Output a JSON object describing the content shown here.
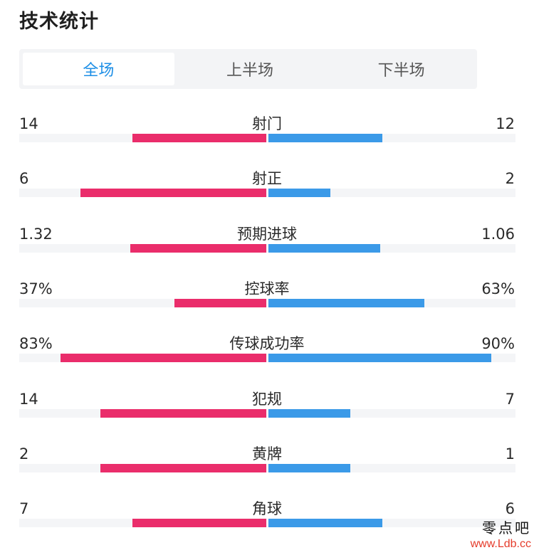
{
  "title": "技术统计",
  "tabs": [
    {
      "label": "全场",
      "active": true
    },
    {
      "label": "上半场",
      "active": false
    },
    {
      "label": "下半场",
      "active": false
    }
  ],
  "colors": {
    "home": "#ea2d6b",
    "away": "#3b9ae8",
    "active_tab": "#1e8fe6"
  },
  "stats": [
    {
      "label": "射门",
      "left": "14",
      "right": "12",
      "left_share": 0.54,
      "right_share": 0.46
    },
    {
      "label": "射正",
      "left": "6",
      "right": "2",
      "left_share": 0.75,
      "right_share": 0.25
    },
    {
      "label": "预期进球",
      "left": "1.32",
      "right": "1.06",
      "left_share": 0.55,
      "right_share": 0.45
    },
    {
      "label": "控球率",
      "left": "37%",
      "right": "63%",
      "left_share": 0.37,
      "right_share": 0.63
    },
    {
      "label": "传球成功率",
      "left": "83%",
      "right": "90%",
      "left_share": 0.83,
      "right_share": 0.9
    },
    {
      "label": "犯规",
      "left": "14",
      "right": "7",
      "left_share": 0.67,
      "right_share": 0.33
    },
    {
      "label": "黄牌",
      "left": "2",
      "right": "1",
      "left_share": 0.67,
      "right_share": 0.33
    },
    {
      "label": "角球",
      "left": "7",
      "right": "6",
      "left_share": 0.54,
      "right_share": 0.46
    }
  ],
  "watermark": {
    "name": "零点吧",
    "url": "www.Ldb.cc"
  }
}
